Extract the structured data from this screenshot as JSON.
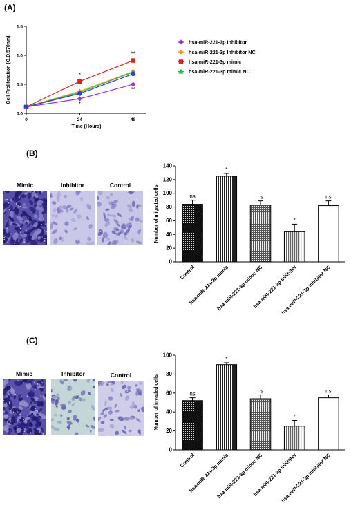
{
  "panels": {
    "a": "(A)",
    "b": "(B)",
    "c": "(C)"
  },
  "micrographs": {
    "b": [
      "Mimic",
      "Inhibitor",
      "Control"
    ],
    "c": [
      "Mimic",
      "Inhibitor",
      "Control"
    ]
  },
  "colors": {
    "inhibitor": "#9b30d9",
    "inhibitor_nc": "#f59a23",
    "mimic": "#e02020",
    "mimic_nc": "#2db34a",
    "blue": "#2244dd",
    "stain": "#3a2f8f"
  },
  "chart_data": [
    {
      "type": "line",
      "xlabel": "Time (Hours)",
      "ylabel": "Cell Proliferation (O.D.570nm)",
      "x": [
        0,
        24,
        48
      ],
      "x_ticks": [
        "0",
        "24",
        "48"
      ],
      "y_ticks": [
        "0.0",
        "0.5",
        "1.0",
        "1.5"
      ],
      "xlim": [
        0,
        54
      ],
      "ylim": [
        0,
        1.5
      ],
      "legend_position": "right",
      "series": [
        {
          "name": "hsa-miR-221-3p Inhibitor",
          "color": "#9b30d9",
          "marker": "diamond",
          "values": [
            0.11,
            0.25,
            0.5
          ]
        },
        {
          "name": "hsa-miR-221-3p Inhibitor NC",
          "color": "#f59a23",
          "marker": "diamond",
          "values": [
            0.11,
            0.38,
            0.72
          ]
        },
        {
          "name": "hsa-miR-221-3p mimic",
          "color": "#e02020",
          "marker": "square",
          "values": [
            0.11,
            0.55,
            0.91
          ]
        },
        {
          "name": "hsa-miR-221-3p mimic NC",
          "color": "#2db34a",
          "marker": "triangle",
          "values": [
            0.11,
            0.36,
            0.71
          ]
        }
      ],
      "extra_points": {
        "color": "#2244dd",
        "x": [
          0,
          24,
          48
        ],
        "values": [
          0.11,
          0.34,
          0.68
        ]
      },
      "annotations": [
        {
          "x": 24,
          "y": 0.55,
          "position": "above",
          "text": "*"
        },
        {
          "x": 24,
          "y": 0.25,
          "position": "below",
          "text": "*"
        },
        {
          "x": 48,
          "y": 0.91,
          "position": "above",
          "text": "**"
        },
        {
          "x": 48,
          "y": 0.5,
          "position": "below",
          "text": "**"
        }
      ]
    },
    {
      "type": "bar",
      "ylabel": "Number of migrated cells",
      "categories": [
        "Control",
        "hsa-miR-221-3p mimic",
        "hsa-miR-221-3p mimic NC",
        "hsa-miR-221-3p Inhibitor",
        "hsa-miR-221-3p Inhibitor NC"
      ],
      "values": [
        84,
        125,
        83,
        44,
        82
      ],
      "errors": [
        6,
        4,
        6,
        11,
        7
      ],
      "significance": [
        "ns",
        "*",
        "ns",
        "*",
        "ns"
      ],
      "y_ticks": [
        "0",
        "20",
        "40",
        "60",
        "80",
        "100",
        "120",
        "140"
      ],
      "ylim": [
        0,
        140
      ]
    },
    {
      "type": "bar",
      "ylabel": "Number of invaded cells",
      "categories": [
        "Control",
        "hsa-miR-221-3p mimic",
        "hsa-miR-221-3p mimic NC",
        "hsa-miR-221-3p Inhibitor",
        "hsa-miR-221-3p Inhibitor NC"
      ],
      "values": [
        52,
        90,
        54,
        25,
        55
      ],
      "errors": [
        3,
        2,
        4,
        6,
        3
      ],
      "significance": [
        "ns",
        "*",
        "ns",
        "*",
        "ns"
      ],
      "y_ticks": [
        "0",
        "20",
        "40",
        "60",
        "80",
        "100"
      ],
      "ylim": [
        0,
        100
      ]
    }
  ]
}
